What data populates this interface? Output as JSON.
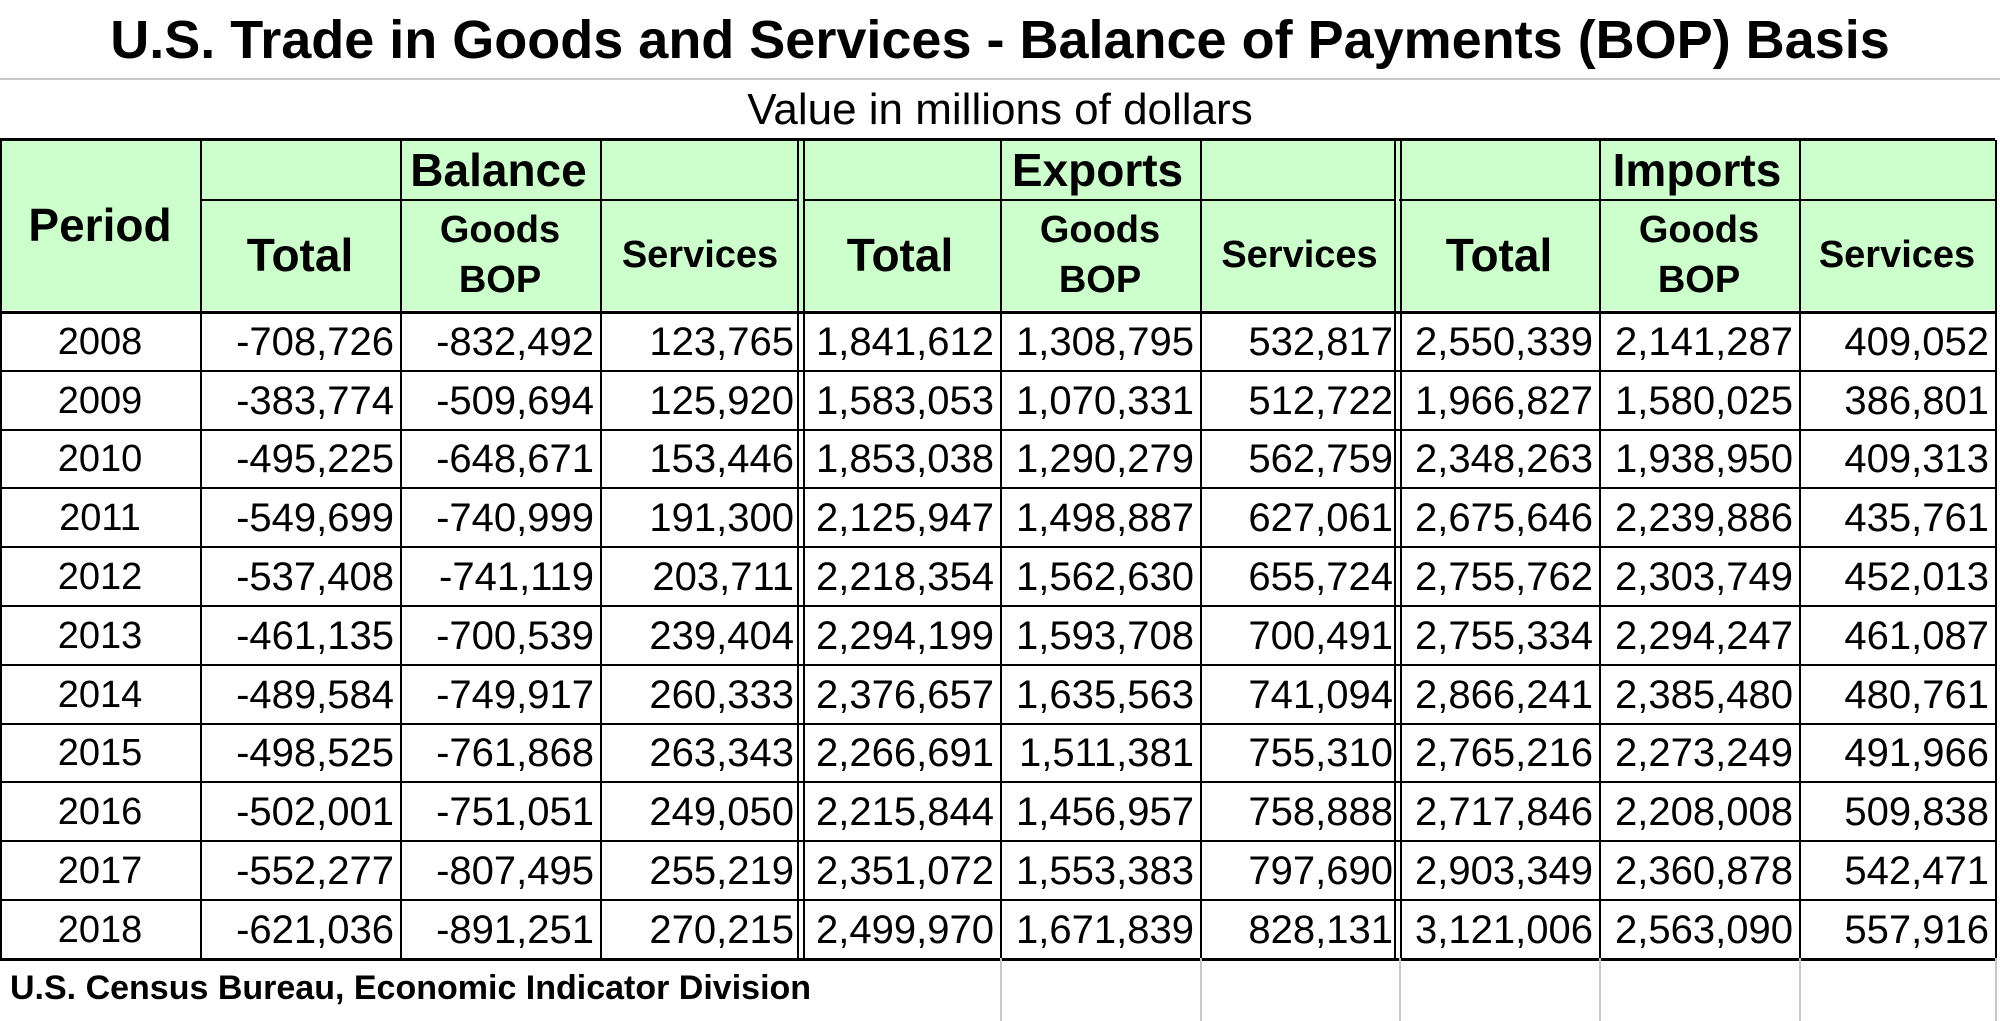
{
  "title": "U.S. Trade in Goods and Services - Balance of Payments (BOP) Basis",
  "subtitle": "Value in millions of dollars",
  "header": {
    "period": "Period",
    "groups": [
      "Balance",
      "Exports",
      "Imports"
    ],
    "total": "Total",
    "goods_line1": "Goods",
    "goods_line2": "BOP",
    "services": "Services"
  },
  "rows": [
    {
      "period": "2008",
      "bal_total": "-708,726",
      "bal_goods": "-832,492",
      "bal_serv": "123,765",
      "exp_total": "1,841,612",
      "exp_goods": "1,308,795",
      "exp_serv": "532,817",
      "imp_total": "2,550,339",
      "imp_goods": "2,141,287",
      "imp_serv": "409,052"
    },
    {
      "period": "2009",
      "bal_total": "-383,774",
      "bal_goods": "-509,694",
      "bal_serv": "125,920",
      "exp_total": "1,583,053",
      "exp_goods": "1,070,331",
      "exp_serv": "512,722",
      "imp_total": "1,966,827",
      "imp_goods": "1,580,025",
      "imp_serv": "386,801"
    },
    {
      "period": "2010",
      "bal_total": "-495,225",
      "bal_goods": "-648,671",
      "bal_serv": "153,446",
      "exp_total": "1,853,038",
      "exp_goods": "1,290,279",
      "exp_serv": "562,759",
      "imp_total": "2,348,263",
      "imp_goods": "1,938,950",
      "imp_serv": "409,313"
    },
    {
      "period": "2011",
      "bal_total": "-549,699",
      "bal_goods": "-740,999",
      "bal_serv": "191,300",
      "exp_total": "2,125,947",
      "exp_goods": "1,498,887",
      "exp_serv": "627,061",
      "imp_total": "2,675,646",
      "imp_goods": "2,239,886",
      "imp_serv": "435,761"
    },
    {
      "period": "2012",
      "bal_total": "-537,408",
      "bal_goods": "-741,119",
      "bal_serv": "203,711",
      "exp_total": "2,218,354",
      "exp_goods": "1,562,630",
      "exp_serv": "655,724",
      "imp_total": "2,755,762",
      "imp_goods": "2,303,749",
      "imp_serv": "452,013"
    },
    {
      "period": "2013",
      "bal_total": "-461,135",
      "bal_goods": "-700,539",
      "bal_serv": "239,404",
      "exp_total": "2,294,199",
      "exp_goods": "1,593,708",
      "exp_serv": "700,491",
      "imp_total": "2,755,334",
      "imp_goods": "2,294,247",
      "imp_serv": "461,087"
    },
    {
      "period": "2014",
      "bal_total": "-489,584",
      "bal_goods": "-749,917",
      "bal_serv": "260,333",
      "exp_total": "2,376,657",
      "exp_goods": "1,635,563",
      "exp_serv": "741,094",
      "imp_total": "2,866,241",
      "imp_goods": "2,385,480",
      "imp_serv": "480,761"
    },
    {
      "period": "2015",
      "bal_total": "-498,525",
      "bal_goods": "-761,868",
      "bal_serv": "263,343",
      "exp_total": "2,266,691",
      "exp_goods": "1,511,381",
      "exp_serv": "755,310",
      "imp_total": "2,765,216",
      "imp_goods": "2,273,249",
      "imp_serv": "491,966"
    },
    {
      "period": "2016",
      "bal_total": "-502,001",
      "bal_goods": "-751,051",
      "bal_serv": "249,050",
      "exp_total": "2,215,844",
      "exp_goods": "1,456,957",
      "exp_serv": "758,888",
      "imp_total": "2,717,846",
      "imp_goods": "2,208,008",
      "imp_serv": "509,838"
    },
    {
      "period": "2017",
      "bal_total": "-552,277",
      "bal_goods": "-807,495",
      "bal_serv": "255,219",
      "exp_total": "2,351,072",
      "exp_goods": "1,553,383",
      "exp_serv": "797,690",
      "imp_total": "2,903,349",
      "imp_goods": "2,360,878",
      "imp_serv": "542,471"
    },
    {
      "period": "2018",
      "bal_total": "-621,036",
      "bal_goods": "-891,251",
      "bal_serv": "270,215",
      "exp_total": "2,499,970",
      "exp_goods": "1,671,839",
      "exp_serv": "828,131",
      "imp_total": "3,121,006",
      "imp_goods": "2,563,090",
      "imp_serv": "557,916"
    }
  ],
  "footer": "U.S. Census Bureau, Economic Indicator Division",
  "colors": {
    "header_bg": "#ccffcc",
    "grid": "#c8c8c8",
    "border": "#000000"
  }
}
